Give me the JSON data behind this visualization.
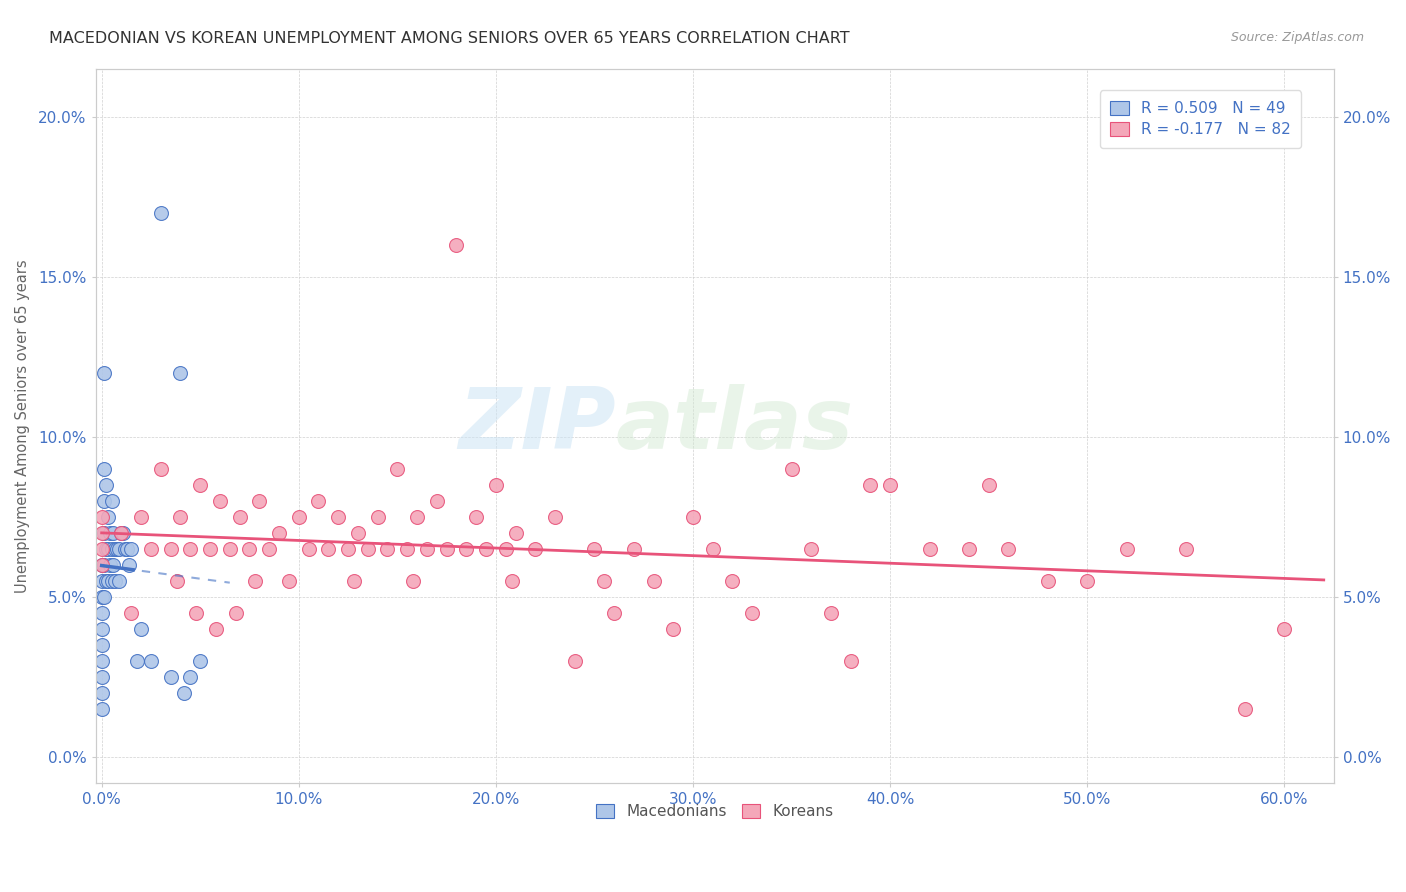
{
  "title": "MACEDONIAN VS KOREAN UNEMPLOYMENT AMONG SENIORS OVER 65 YEARS CORRELATION CHART",
  "source": "Source: ZipAtlas.com",
  "ylabel": "Unemployment Among Seniors over 65 years",
  "xlim": [
    -0.003,
    0.625
  ],
  "ylim": [
    -0.008,
    0.215
  ],
  "xticks": [
    0.0,
    0.1,
    0.2,
    0.3,
    0.4,
    0.5,
    0.6
  ],
  "yticks": [
    0.0,
    0.05,
    0.1,
    0.15,
    0.2
  ],
  "macedonian_color": "#aec6e8",
  "macedonian_line_color": "#4472c4",
  "korean_color": "#f4a7b9",
  "korean_line_color": "#e8537a",
  "legend_label_mac": "R = 0.509   N = 49",
  "legend_label_kor": "R = -0.177   N = 82",
  "legend_bottom_mac": "Macedonians",
  "legend_bottom_kor": "Koreans",
  "mac_x": [
    0.0,
    0.0,
    0.0,
    0.0,
    0.0,
    0.0,
    0.0,
    0.0,
    0.0,
    0.0,
    0.001,
    0.001,
    0.001,
    0.001,
    0.001,
    0.001,
    0.002,
    0.002,
    0.002,
    0.003,
    0.003,
    0.003,
    0.004,
    0.004,
    0.005,
    0.005,
    0.005,
    0.006,
    0.006,
    0.007,
    0.007,
    0.008,
    0.009,
    0.009,
    0.01,
    0.011,
    0.012,
    0.013,
    0.014,
    0.015,
    0.018,
    0.02,
    0.025,
    0.03,
    0.035,
    0.04,
    0.042,
    0.045,
    0.05
  ],
  "mac_y": [
    0.06,
    0.055,
    0.05,
    0.045,
    0.04,
    0.035,
    0.03,
    0.025,
    0.02,
    0.015,
    0.12,
    0.09,
    0.08,
    0.07,
    0.06,
    0.05,
    0.085,
    0.065,
    0.055,
    0.075,
    0.065,
    0.055,
    0.07,
    0.06,
    0.08,
    0.065,
    0.055,
    0.07,
    0.06,
    0.065,
    0.055,
    0.065,
    0.065,
    0.055,
    0.07,
    0.07,
    0.065,
    0.065,
    0.06,
    0.065,
    0.03,
    0.04,
    0.03,
    0.17,
    0.025,
    0.12,
    0.02,
    0.025,
    0.03
  ],
  "kor_x": [
    0.0,
    0.0,
    0.0,
    0.0,
    0.01,
    0.015,
    0.02,
    0.025,
    0.03,
    0.035,
    0.038,
    0.04,
    0.045,
    0.048,
    0.05,
    0.055,
    0.058,
    0.06,
    0.065,
    0.068,
    0.07,
    0.075,
    0.078,
    0.08,
    0.085,
    0.09,
    0.095,
    0.1,
    0.105,
    0.11,
    0.115,
    0.12,
    0.125,
    0.128,
    0.13,
    0.135,
    0.14,
    0.145,
    0.15,
    0.155,
    0.158,
    0.16,
    0.165,
    0.17,
    0.175,
    0.18,
    0.185,
    0.19,
    0.195,
    0.2,
    0.205,
    0.208,
    0.21,
    0.22,
    0.23,
    0.24,
    0.25,
    0.255,
    0.26,
    0.27,
    0.28,
    0.29,
    0.3,
    0.31,
    0.32,
    0.33,
    0.35,
    0.36,
    0.37,
    0.38,
    0.39,
    0.4,
    0.42,
    0.44,
    0.45,
    0.46,
    0.48,
    0.5,
    0.52,
    0.55,
    0.58,
    0.6
  ],
  "kor_y": [
    0.065,
    0.06,
    0.07,
    0.075,
    0.07,
    0.045,
    0.075,
    0.065,
    0.09,
    0.065,
    0.055,
    0.075,
    0.065,
    0.045,
    0.085,
    0.065,
    0.04,
    0.08,
    0.065,
    0.045,
    0.075,
    0.065,
    0.055,
    0.08,
    0.065,
    0.07,
    0.055,
    0.075,
    0.065,
    0.08,
    0.065,
    0.075,
    0.065,
    0.055,
    0.07,
    0.065,
    0.075,
    0.065,
    0.09,
    0.065,
    0.055,
    0.075,
    0.065,
    0.08,
    0.065,
    0.16,
    0.065,
    0.075,
    0.065,
    0.085,
    0.065,
    0.055,
    0.07,
    0.065,
    0.075,
    0.03,
    0.065,
    0.055,
    0.045,
    0.065,
    0.055,
    0.04,
    0.075,
    0.065,
    0.055,
    0.045,
    0.09,
    0.065,
    0.045,
    0.03,
    0.085,
    0.085,
    0.065,
    0.065,
    0.085,
    0.065,
    0.055,
    0.055,
    0.065,
    0.065,
    0.015,
    0.04
  ]
}
